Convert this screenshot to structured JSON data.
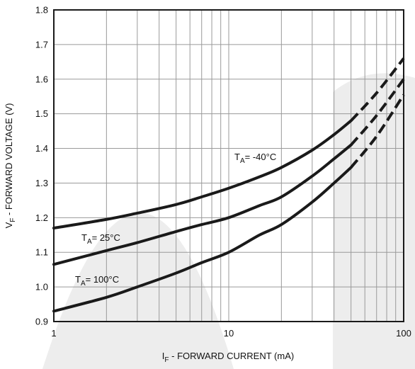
{
  "chart_data": {
    "type": "line",
    "title": "",
    "x_scale": "log",
    "xlim": [
      1,
      100
    ],
    "ylim": [
      0.9,
      1.8
    ],
    "grid": true,
    "x_ticks": [
      "1",
      "10",
      "100"
    ],
    "y_ticks": [
      "0.9",
      "1.0",
      "1.1",
      "1.2",
      "1.3",
      "1.4",
      "1.5",
      "1.6",
      "1.7",
      "1.8"
    ],
    "xlabel": {
      "main": "I",
      "sub": "F",
      "rest": " - FORWARD CURRENT (mA)"
    },
    "ylabel": {
      "main": "V",
      "sub": "F",
      "rest": " - FORWARD VOLTAGE (V)"
    },
    "series": [
      {
        "label": {
          "main": "T",
          "sub": "A",
          "rest": "= -40°C"
        },
        "x": [
          1,
          2,
          3,
          5,
          7,
          10,
          15,
          20,
          30,
          40,
          50
        ],
        "y": [
          1.17,
          1.195,
          1.213,
          1.238,
          1.26,
          1.285,
          1.318,
          1.345,
          1.395,
          1.44,
          1.48
        ],
        "dashed_x": [
          50,
          70,
          100
        ],
        "dashed_y": [
          1.48,
          1.56,
          1.66
        ]
      },
      {
        "label": {
          "main": "T",
          "sub": "A",
          "rest": "= 25°C"
        },
        "x": [
          1,
          2,
          3,
          5,
          7,
          10,
          15,
          20,
          30,
          40,
          50
        ],
        "y": [
          1.065,
          1.105,
          1.128,
          1.16,
          1.18,
          1.2,
          1.235,
          1.26,
          1.32,
          1.37,
          1.41
        ],
        "dashed_x": [
          50,
          70,
          100
        ],
        "dashed_y": [
          1.41,
          1.495,
          1.6
        ]
      },
      {
        "label": {
          "main": "T",
          "sub": "A",
          "rest": "= 100°C"
        },
        "x": [
          1,
          2,
          3,
          5,
          7,
          10,
          15,
          20,
          30,
          40,
          50
        ],
        "y": [
          0.93,
          0.97,
          1.0,
          1.04,
          1.07,
          1.1,
          1.15,
          1.18,
          1.245,
          1.3,
          1.345
        ],
        "dashed_x": [
          50,
          70,
          100
        ],
        "dashed_y": [
          1.345,
          1.435,
          1.555
        ]
      }
    ],
    "colors": {
      "line": "#1a1a1a",
      "grid": "#9a9a9a",
      "background": "#ffffff",
      "watermark": "#ededed"
    }
  }
}
